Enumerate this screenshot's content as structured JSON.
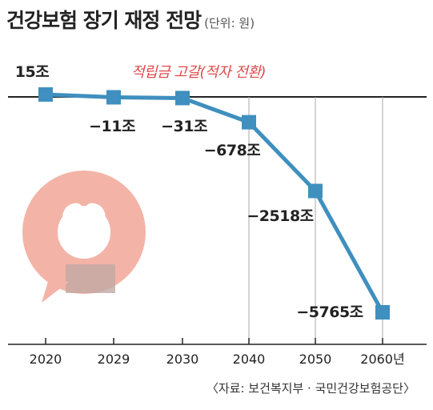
{
  "header": {
    "title": "건강보험 장기 재정 전망",
    "unit": "(단위: 원)"
  },
  "annotation": "적립금 고갈(적자 전환)",
  "source": "〈자료: 보건복지부 · 국민건강보험공단〉",
  "colors": {
    "line": "#3f8fbf",
    "marker": "#3f8fbf",
    "annotation": "#e04a4a",
    "axis": "#222222",
    "gridline": "#aaaaaa",
    "logo": "#f2a898"
  },
  "chart_data": {
    "type": "line",
    "title": "건강보험 장기 재정 전망",
    "unit": "(단위: 원)",
    "categories": [
      "2020",
      "2029",
      "2030",
      "2040",
      "2050",
      "2060년"
    ],
    "values": [
      15,
      -11,
      -31,
      -678,
      -2518,
      -5765
    ],
    "value_labels": [
      "15조",
      "−11조",
      "−31조",
      "−678조",
      "−2518조",
      "−5765조"
    ],
    "annotation": "적립금 고갈(적자 전환)"
  }
}
